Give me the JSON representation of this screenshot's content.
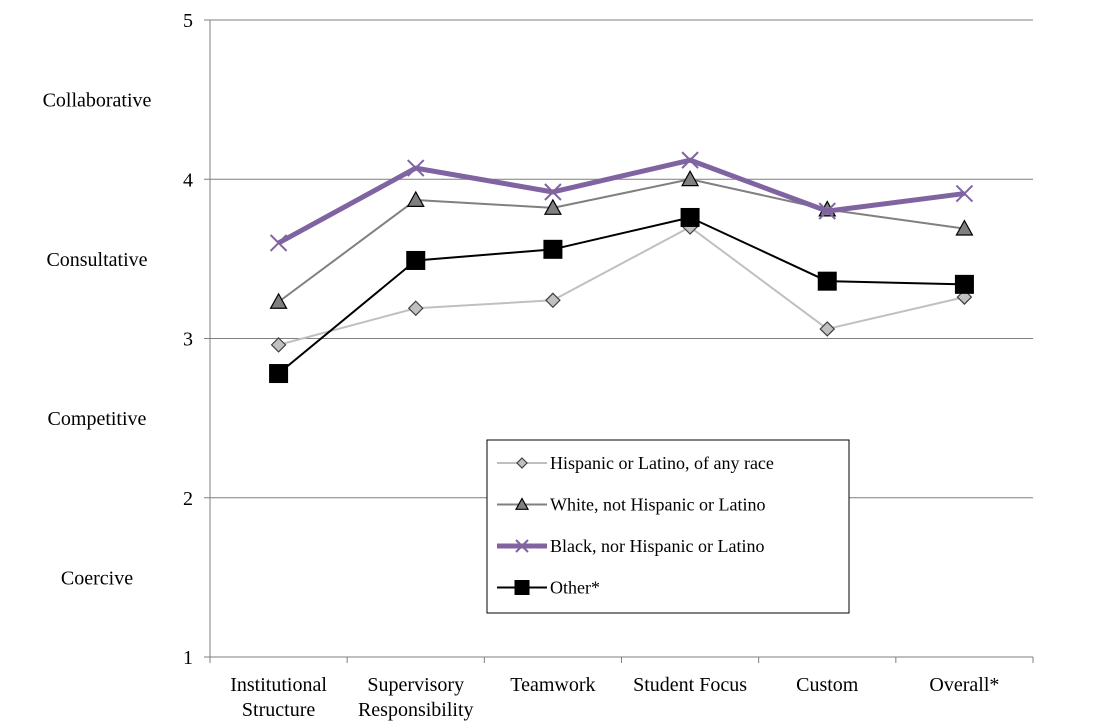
{
  "chart_data": {
    "type": "line",
    "title": "",
    "xlabel": "",
    "ylabel": "",
    "ylim": [
      1,
      5
    ],
    "yticks": [
      1,
      2,
      3,
      4,
      5
    ],
    "ytick_labels": [
      "1",
      "2",
      "3",
      "4",
      "5"
    ],
    "band_labels": [
      {
        "text": "Collaborative",
        "y": 4.5
      },
      {
        "text": "Consultative",
        "y": 3.5
      },
      {
        "text": "Competitive",
        "y": 2.5
      },
      {
        "text": "Coercive",
        "y": 1.5
      }
    ],
    "categories": [
      [
        "Institutional",
        "Structure"
      ],
      [
        "Supervisory",
        "Responsibility"
      ],
      [
        "Teamwork"
      ],
      [
        "Student Focus"
      ],
      [
        "Custom"
      ],
      [
        "Overall*"
      ]
    ],
    "grid": true,
    "legend_position": "lower-center",
    "series": [
      {
        "name": "Hispanic or Latino, of any race",
        "marker": "diamond",
        "color": "#c0c0c0",
        "values": [
          2.96,
          3.19,
          3.24,
          3.7,
          3.06,
          3.26
        ]
      },
      {
        "name": "White, not Hispanic or Latino",
        "marker": "triangle",
        "color": "#808080",
        "values": [
          3.23,
          3.87,
          3.82,
          4.0,
          3.81,
          3.69
        ]
      },
      {
        "name": "Black, nor Hispanic or Latino",
        "marker": "x",
        "color": "#8064a2",
        "values": [
          3.6,
          4.07,
          3.92,
          4.12,
          3.8,
          3.91
        ]
      },
      {
        "name": "Other*",
        "marker": "square",
        "color": "#000000",
        "values": [
          2.78,
          3.49,
          3.56,
          3.76,
          3.36,
          3.34
        ]
      }
    ]
  }
}
